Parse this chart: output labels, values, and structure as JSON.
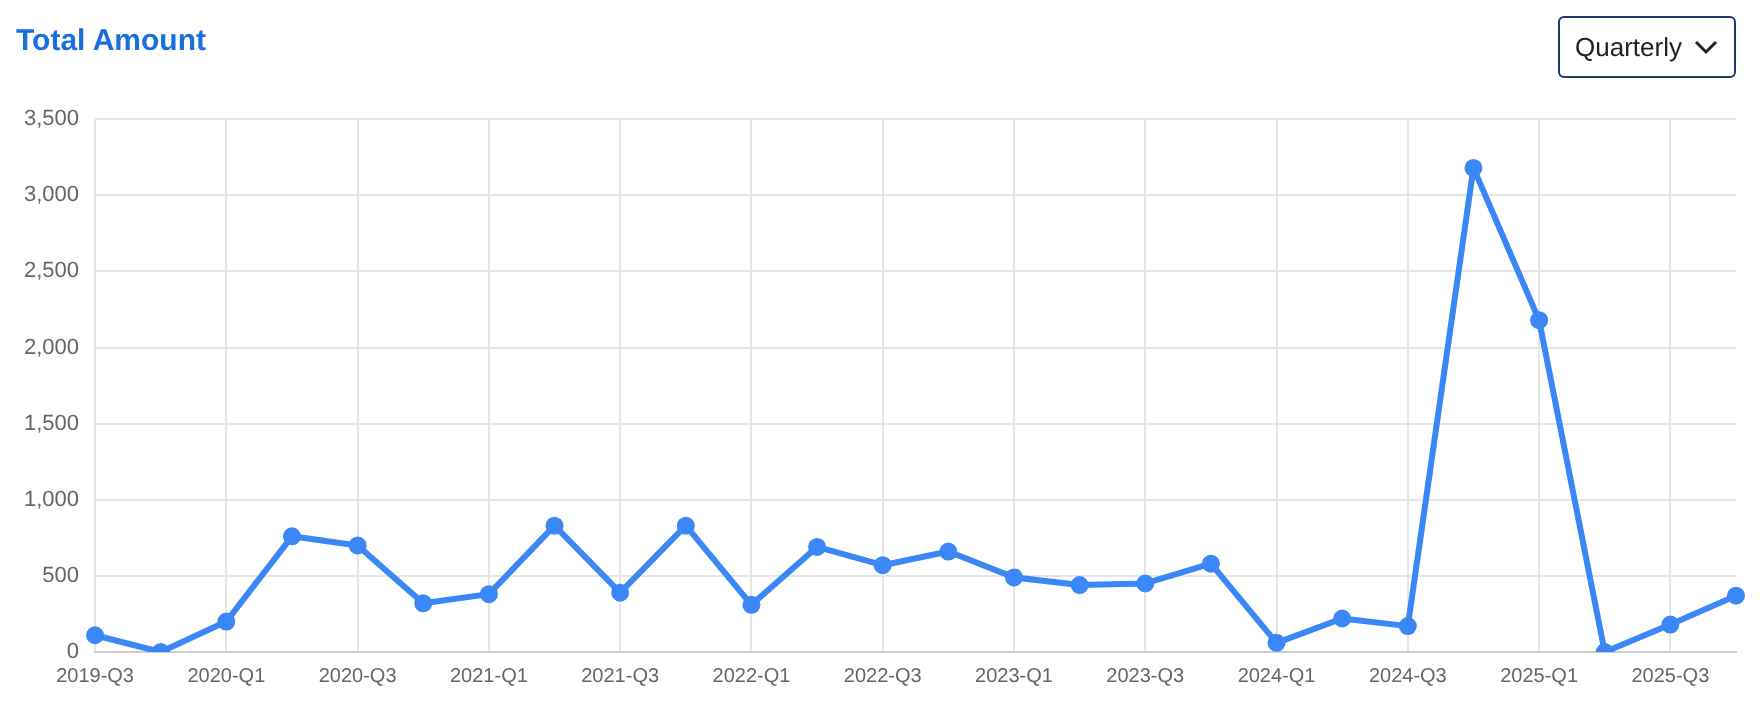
{
  "chart_data": {
    "type": "line",
    "title": "Total Amount",
    "annotations": [
      "Quarterly"
    ],
    "categories": [
      "2019-Q3",
      null,
      "2020-Q1",
      null,
      "2020-Q3",
      null,
      "2021-Q1",
      null,
      "2021-Q3",
      null,
      "2022-Q1",
      null,
      "2022-Q3",
      null,
      "2023-Q1",
      null,
      "2023-Q3",
      null,
      "2024-Q1",
      null,
      "2024-Q3",
      null,
      "2025-Q1",
      null,
      "2025-Q3",
      null
    ],
    "series": [
      {
        "color": "#3b87f5",
        "values": [
          110,
          0,
          200,
          760,
          700,
          320,
          380,
          830,
          390,
          830,
          310,
          690,
          570,
          660,
          490,
          440,
          450,
          580,
          60,
          220,
          170,
          3180,
          2180,
          0,
          180,
          370
        ]
      }
    ],
    "ylim": [
      0,
      3500
    ],
    "yticks": [
      0,
      500,
      {
        "value": 1000,
        "label": "1,000"
      },
      {
        "value": 1500,
        "label": "1,500"
      },
      {
        "value": 2000,
        "label": "2,000"
      },
      {
        "value": 2500,
        "label": "2,500"
      },
      {
        "value": 3000,
        "label": "3,000"
      },
      {
        "value": 3500,
        "label": "3,500"
      }
    ],
    "grid": true,
    "legend": false,
    "marker": "circle",
    "line_style": "solid"
  }
}
